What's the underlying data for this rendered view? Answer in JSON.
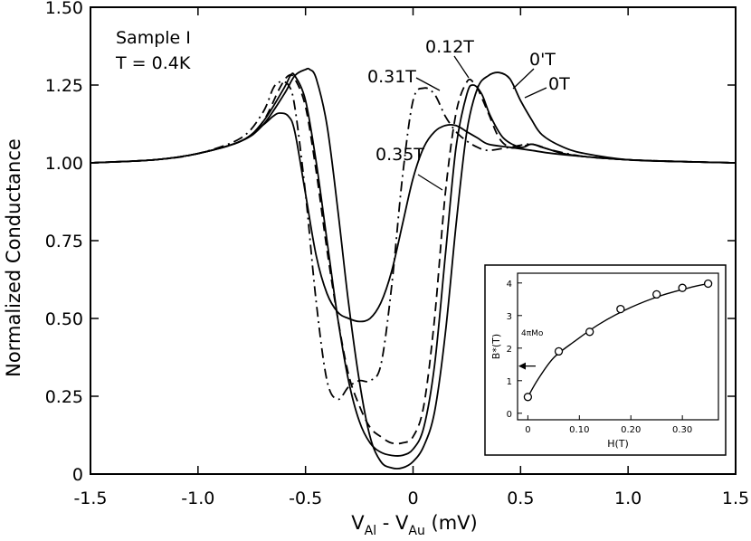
{
  "chart_data": {
    "type": "line",
    "title": "",
    "xlabel": "V_Al - V_Au (mV)",
    "xlabel_parts": {
      "v1": "V",
      "s1": "Al",
      "mid": " - V",
      "s2": "Au",
      "unit": " (mV)"
    },
    "ylabel": "Normalized Conductance",
    "xlim": [
      -1.5,
      1.5
    ],
    "ylim": [
      0,
      1.5
    ],
    "x_ticks": [
      -1.5,
      -1.0,
      -0.5,
      0,
      0.5,
      1.0,
      1.5
    ],
    "x_tick_labels": [
      "-1.5",
      "-1.0",
      "-0.5",
      "0",
      "0.5",
      "1.0",
      "1.5"
    ],
    "y_ticks": [
      0,
      0.25,
      0.5,
      0.75,
      1.0,
      1.25,
      1.5
    ],
    "y_tick_labels": [
      "0",
      "0.25",
      "0.50",
      "0.75",
      "1.00",
      "1.25",
      "1.50"
    ],
    "annotations": {
      "sample": "Sample I",
      "temperature": "T = 0.4K"
    },
    "series": [
      {
        "name": "0T",
        "style": "solid",
        "x": [
          -1.5,
          -1.2,
          -1.0,
          -0.8,
          -0.7,
          -0.6,
          -0.55,
          -0.5,
          -0.48,
          -0.45,
          -0.4,
          -0.35,
          -0.3,
          -0.25,
          -0.2,
          -0.15,
          -0.1,
          -0.05,
          0,
          0.05,
          0.1,
          0.15,
          0.2,
          0.25,
          0.3,
          0.35,
          0.4,
          0.45,
          0.5,
          0.55,
          0.6,
          0.7,
          0.8,
          1.0,
          1.2,
          1.5
        ],
        "y": [
          1.0,
          1.01,
          1.03,
          1.07,
          1.12,
          1.22,
          1.28,
          1.3,
          1.3,
          1.27,
          1.12,
          0.85,
          0.55,
          0.3,
          0.12,
          0.04,
          0.02,
          0.02,
          0.04,
          0.09,
          0.2,
          0.45,
          0.8,
          1.1,
          1.24,
          1.28,
          1.29,
          1.27,
          1.2,
          1.14,
          1.09,
          1.05,
          1.03,
          1.01,
          1.005,
          1.0
        ]
      },
      {
        "name": "0'T",
        "style": "solid",
        "x": [
          -1.5,
          -1.2,
          -1.0,
          -0.8,
          -0.7,
          -0.6,
          -0.57,
          -0.55,
          -0.5,
          -0.45,
          -0.4,
          -0.35,
          -0.3,
          -0.25,
          -0.2,
          -0.15,
          -0.1,
          -0.05,
          0,
          0.05,
          0.1,
          0.15,
          0.2,
          0.25,
          0.28,
          0.32,
          0.36,
          0.42,
          0.5,
          0.55,
          0.6,
          0.7,
          0.8,
          1.0,
          1.2,
          1.5
        ],
        "y": [
          1.0,
          1.01,
          1.03,
          1.07,
          1.13,
          1.24,
          1.28,
          1.28,
          1.2,
          1.0,
          0.75,
          0.5,
          0.3,
          0.17,
          0.1,
          0.07,
          0.06,
          0.06,
          0.08,
          0.15,
          0.35,
          0.7,
          1.05,
          1.22,
          1.25,
          1.22,
          1.15,
          1.08,
          1.05,
          1.06,
          1.05,
          1.03,
          1.02,
          1.01,
          1.005,
          1.0
        ]
      },
      {
        "name": "0.12T",
        "style": "dashed",
        "x": [
          -1.5,
          -1.2,
          -1.0,
          -0.8,
          -0.7,
          -0.62,
          -0.58,
          -0.55,
          -0.5,
          -0.45,
          -0.4,
          -0.35,
          -0.3,
          -0.25,
          -0.2,
          -0.15,
          -0.1,
          -0.05,
          0,
          0.05,
          0.1,
          0.15,
          0.2,
          0.25,
          0.28,
          0.3,
          0.35,
          0.4,
          0.45,
          0.5,
          0.55,
          0.6,
          0.7,
          0.8,
          1.0,
          1.2,
          1.5
        ],
        "y": [
          1.0,
          1.01,
          1.03,
          1.07,
          1.13,
          1.24,
          1.28,
          1.27,
          1.18,
          0.97,
          0.72,
          0.5,
          0.32,
          0.22,
          0.15,
          0.12,
          0.1,
          0.1,
          0.12,
          0.22,
          0.5,
          0.9,
          1.16,
          1.26,
          1.26,
          1.24,
          1.16,
          1.08,
          1.05,
          1.05,
          1.06,
          1.05,
          1.03,
          1.02,
          1.01,
          1.005,
          1.0
        ]
      },
      {
        "name": "0.31T",
        "style": "dashdot",
        "x": [
          -1.5,
          -1.2,
          -1.0,
          -0.8,
          -0.7,
          -0.65,
          -0.62,
          -0.58,
          -0.55,
          -0.5,
          -0.45,
          -0.4,
          -0.35,
          -0.3,
          -0.25,
          -0.2,
          -0.15,
          -0.1,
          -0.05,
          0,
          0.05,
          0.1,
          0.15,
          0.2,
          0.25,
          0.3,
          0.35,
          0.45,
          0.55,
          0.65,
          0.8,
          1.0,
          1.2,
          1.5
        ],
        "y": [
          1.0,
          1.01,
          1.03,
          1.08,
          1.16,
          1.24,
          1.26,
          1.25,
          1.18,
          0.9,
          0.55,
          0.3,
          0.24,
          0.28,
          0.3,
          0.3,
          0.35,
          0.6,
          0.95,
          1.2,
          1.24,
          1.22,
          1.15,
          1.1,
          1.07,
          1.05,
          1.04,
          1.05,
          1.06,
          1.04,
          1.02,
          1.01,
          1.005,
          1.0
        ]
      },
      {
        "name": "0.35T",
        "style": "solid",
        "x": [
          -1.5,
          -1.2,
          -1.0,
          -0.8,
          -0.7,
          -0.65,
          -0.62,
          -0.58,
          -0.55,
          -0.5,
          -0.45,
          -0.4,
          -0.35,
          -0.3,
          -0.25,
          -0.2,
          -0.15,
          -0.1,
          -0.05,
          0,
          0.05,
          0.1,
          0.15,
          0.2,
          0.25,
          0.3,
          0.35,
          0.45,
          0.55,
          0.65,
          0.8,
          1.0,
          1.2,
          1.5
        ],
        "y": [
          1.0,
          1.01,
          1.03,
          1.07,
          1.12,
          1.15,
          1.16,
          1.15,
          1.1,
          0.9,
          0.7,
          0.58,
          0.52,
          0.5,
          0.49,
          0.5,
          0.55,
          0.65,
          0.8,
          0.95,
          1.05,
          1.1,
          1.12,
          1.12,
          1.1,
          1.08,
          1.06,
          1.05,
          1.04,
          1.03,
          1.02,
          1.01,
          1.005,
          1.0
        ]
      }
    ],
    "inset": {
      "type": "scatter",
      "xlabel": "H(T)",
      "ylabel": "B*(T)",
      "xlim": [
        -0.02,
        0.37
      ],
      "ylim": [
        -0.2,
        4.3
      ],
      "x_ticks": [
        0,
        0.1,
        0.2,
        0.3
      ],
      "x_tick_labels": [
        "0",
        "0.10",
        "0.20",
        "0.30"
      ],
      "y_ticks": [
        0,
        1,
        2,
        3,
        4
      ],
      "y_tick_labels": [
        "0",
        "1",
        "2",
        "3",
        "4"
      ],
      "x": [
        0,
        0.06,
        0.12,
        0.18,
        0.25,
        0.3,
        0.35
      ],
      "y": [
        0.5,
        1.9,
        2.5,
        3.2,
        3.65,
        3.85,
        3.98
      ],
      "marker_annotation": "4πMo",
      "marker_value": 1.45
    }
  }
}
